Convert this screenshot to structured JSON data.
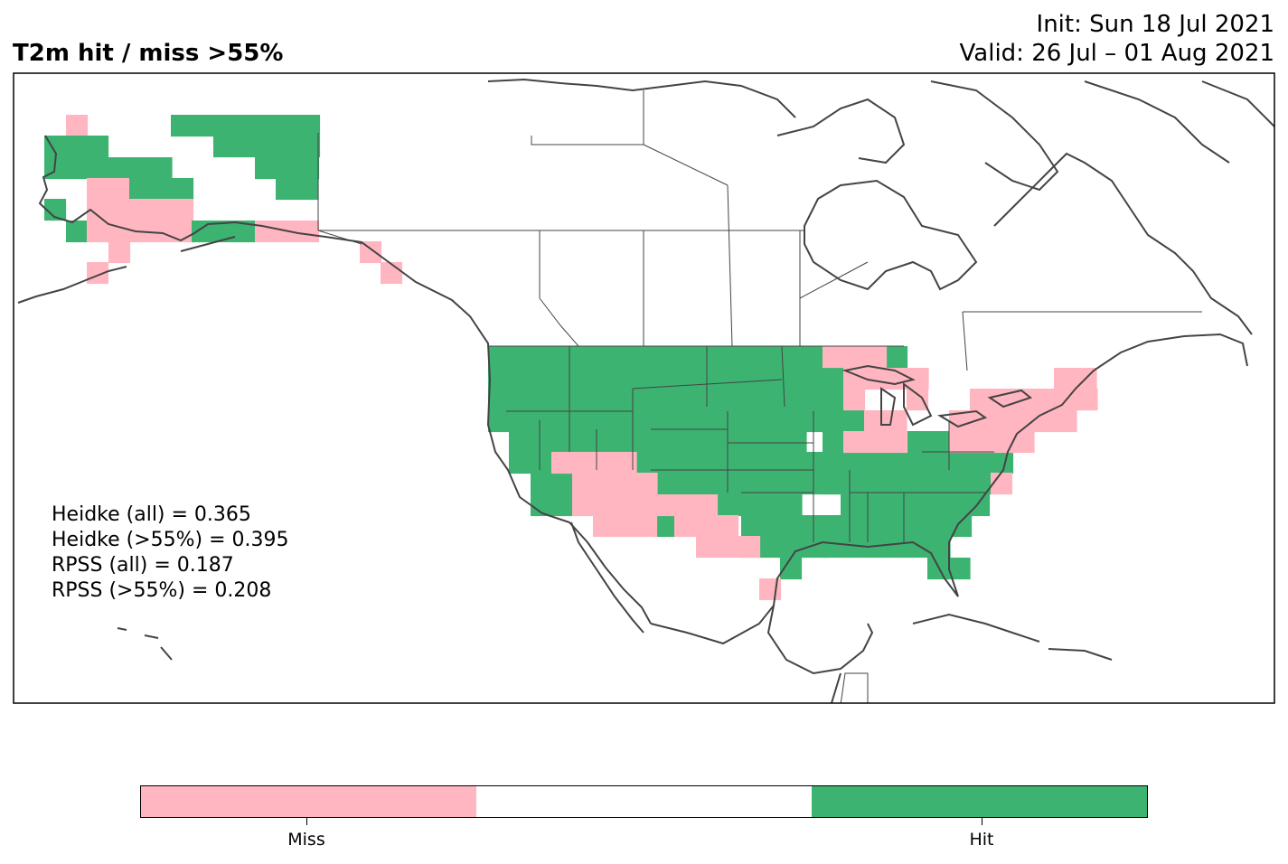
{
  "title": "T2m hit / miss  >55%",
  "init_line": "Init: Sun 18 Jul 2021",
  "valid_line": "Valid: 26 Jul – 01 Aug 2021",
  "stats": [
    "Heidke (all) = 0.365",
    "Heidke (>55%) = 0.395",
    "RPSS (all) = 0.187",
    "RPSS (>55%) = 0.208"
  ],
  "colorbar": {
    "colors": {
      "miss": "#ffb6c1",
      "neutral": "#ffffff",
      "hit": "#3cb371"
    },
    "labels": {
      "miss": "Miss",
      "hit": "Hit"
    }
  },
  "map_colors": {
    "coast": "#444444",
    "border": "#444444"
  }
}
